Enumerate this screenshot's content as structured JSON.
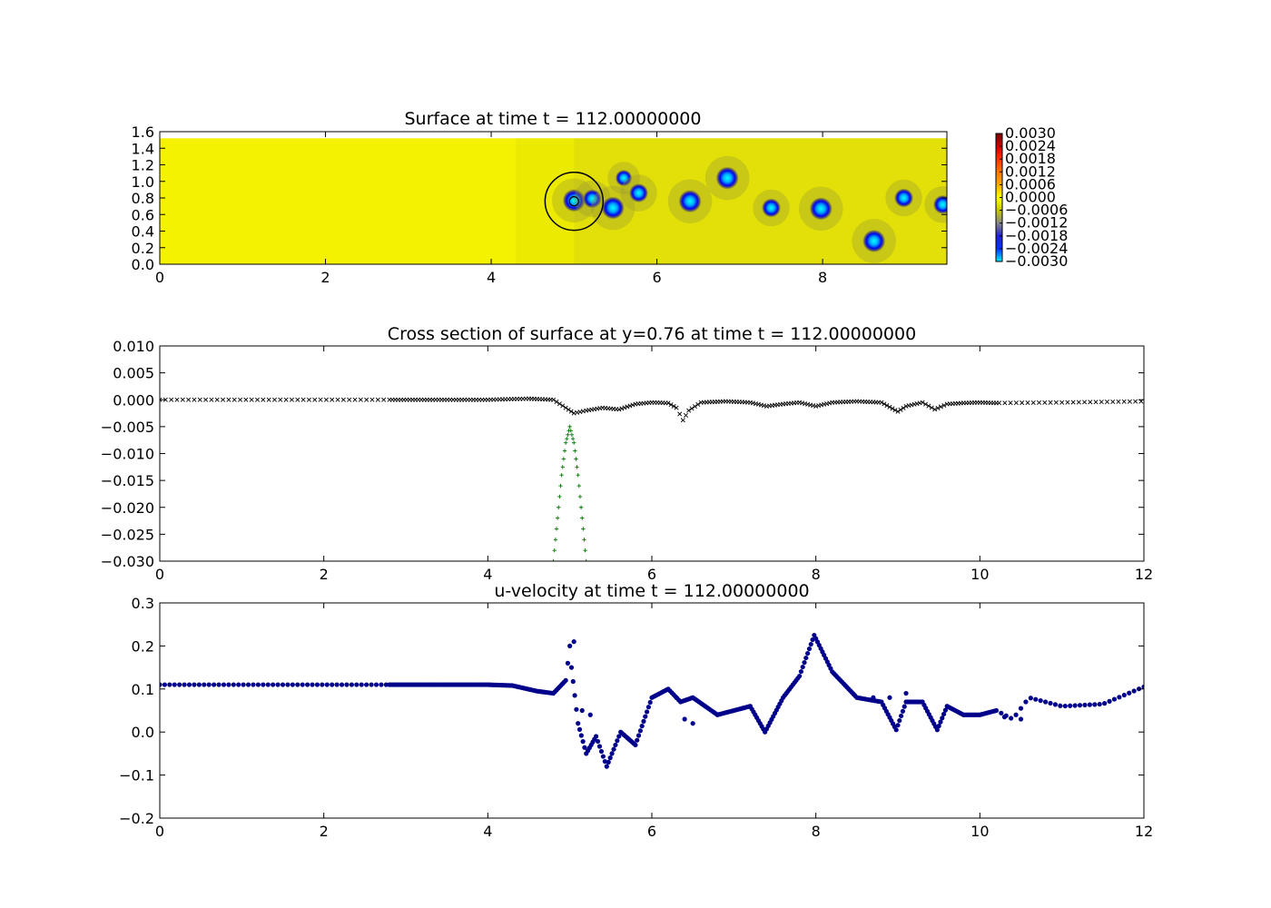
{
  "chart_data": [
    {
      "type": "heatmap",
      "title": "Surface at time t =   112.00000000",
      "xlim": [
        0,
        9.5
      ],
      "ylim": [
        0,
        1.6
      ],
      "data_y_extent": [
        0,
        1.52
      ],
      "x_ticks": [
        "0",
        "2",
        "4",
        "6",
        "8"
      ],
      "y_ticks": [
        "0.0",
        "0.2",
        "0.4",
        "0.6",
        "0.8",
        "1.0",
        "1.2",
        "1.4",
        "1.6"
      ],
      "background_value": 0.0,
      "blobs": [
        {
          "x": 5.0,
          "y": 0.77,
          "value": -0.003
        },
        {
          "x": 5.22,
          "y": 0.79,
          "value": -0.0025
        },
        {
          "x": 5.47,
          "y": 0.68,
          "value": -0.003
        },
        {
          "x": 5.6,
          "y": 1.04,
          "value": -0.0022
        },
        {
          "x": 5.78,
          "y": 0.86,
          "value": -0.0025
        },
        {
          "x": 6.4,
          "y": 0.76,
          "value": -0.003
        },
        {
          "x": 6.85,
          "y": 1.04,
          "value": -0.003
        },
        {
          "x": 7.38,
          "y": 0.68,
          "value": -0.0025
        },
        {
          "x": 7.98,
          "y": 0.67,
          "value": -0.003
        },
        {
          "x": 8.62,
          "y": 0.28,
          "value": -0.003
        },
        {
          "x": 8.98,
          "y": 0.8,
          "value": -0.0025
        },
        {
          "x": 9.45,
          "y": 0.72,
          "value": -0.0025
        }
      ],
      "annotation_circle": {
        "x": 5.0,
        "y": 0.76,
        "r": 0.35
      },
      "colorbar": {
        "ticks": [
          "0.0030",
          "0.0024",
          "0.0018",
          "0.0012",
          "0.0006",
          "0.0000",
          "−0.0006",
          "−0.0012",
          "−0.0018",
          "−0.0024",
          "−0.0030"
        ],
        "colors": [
          "#780000",
          "#cc0000",
          "#ff3300",
          "#ff7700",
          "#ffaa00",
          "#ffff00",
          "#c8c800",
          "#888888",
          "#2222cc",
          "#0033ff",
          "#00eeff"
        ]
      }
    },
    {
      "type": "scatter",
      "title": "Cross section of surface at y=0.76 at time t =   112.00000000",
      "xlim": [
        0,
        12
      ],
      "ylim": [
        -0.03,
        0.01
      ],
      "x_ticks": [
        "0",
        "2",
        "4",
        "6",
        "8",
        "10",
        "12"
      ],
      "y_ticks": [
        "0.010",
        "0.005",
        "0.000",
        "−0.005",
        "−0.010",
        "−0.015",
        "−0.020",
        "−0.025",
        "−0.030"
      ],
      "series": [
        {
          "marker": "x",
          "color": "#000000",
          "x": [
            0,
            2.8,
            4.0,
            4.5,
            4.8,
            4.95,
            5.05,
            5.2,
            5.4,
            5.6,
            5.8,
            6.0,
            6.2,
            6.3,
            6.38,
            6.45,
            6.6,
            6.9,
            7.2,
            7.4,
            7.6,
            7.8,
            8.0,
            8.2,
            8.5,
            8.8,
            9.0,
            9.1,
            9.3,
            9.45,
            9.6,
            9.8,
            10.0,
            10.2,
            11.0,
            12.0
          ],
          "y": [
            0.0,
            0.0,
            0.0,
            0.0002,
            0.0,
            -0.0015,
            -0.0025,
            -0.002,
            -0.0015,
            -0.0018,
            -0.0008,
            -0.0005,
            -0.0006,
            -0.0015,
            -0.0038,
            -0.002,
            -0.0005,
            -0.0003,
            -0.0005,
            -0.0012,
            -0.0008,
            -0.0005,
            -0.0012,
            -0.0005,
            -0.0003,
            -0.0005,
            -0.0022,
            -0.0012,
            -0.0005,
            -0.0018,
            -0.0008,
            -0.0006,
            -0.0005,
            -0.0006,
            -0.0005,
            -0.0003
          ]
        },
        {
          "marker": "+",
          "color": "#007700",
          "x": [
            4.8,
            4.85,
            4.9,
            4.95,
            5.0,
            5.05,
            5.1,
            5.15,
            5.2
          ],
          "y": [
            -0.03,
            -0.022,
            -0.014,
            -0.008,
            -0.005,
            -0.008,
            -0.014,
            -0.022,
            -0.03
          ]
        }
      ]
    },
    {
      "type": "scatter",
      "title": "u-velocity at time t =   112.00000000",
      "xlim": [
        0,
        12
      ],
      "ylim": [
        -0.2,
        0.3
      ],
      "x_ticks": [
        "0",
        "2",
        "4",
        "6",
        "8",
        "10",
        "12"
      ],
      "y_ticks": [
        "0.3",
        "0.2",
        "0.1",
        "0.0",
        "−0.1",
        "−0.2"
      ],
      "series": [
        {
          "marker": "o",
          "color": "#00008b",
          "x": [
            0,
            2.8,
            4.0,
            4.3,
            4.6,
            4.8,
            4.95,
            5.0,
            5.02,
            5.1,
            5.2,
            5.32,
            5.45,
            5.62,
            5.8,
            6.0,
            6.2,
            6.35,
            6.5,
            6.65,
            6.8,
            7.0,
            7.2,
            7.38,
            7.6,
            7.8,
            7.98,
            8.2,
            8.5,
            8.8,
            8.98,
            9.1,
            9.3,
            9.48,
            9.6,
            9.8,
            10.0,
            10.2,
            10.4,
            10.6,
            11.0,
            11.5,
            12.0
          ],
          "y": [
            0.11,
            0.11,
            0.11,
            0.108,
            0.095,
            0.09,
            0.12,
            0.2,
            0.15,
            0.02,
            -0.05,
            -0.01,
            -0.08,
            0.0,
            -0.03,
            0.08,
            0.1,
            0.07,
            0.08,
            0.06,
            0.04,
            0.05,
            0.06,
            0.0,
            0.08,
            0.13,
            0.225,
            0.14,
            0.08,
            0.07,
            0.005,
            0.07,
            0.07,
            0.005,
            0.06,
            0.04,
            0.04,
            0.05,
            0.03,
            0.08,
            0.06,
            0.065,
            0.105
          ]
        },
        {
          "marker": "o",
          "color": "#00008b",
          "x": [
            5.05,
            5.15,
            5.25,
            6.3,
            6.4,
            6.5,
            8.7,
            8.9,
            9.1,
            10.3,
            10.5
          ],
          "y": [
            0.21,
            0.05,
            0.04,
            0.08,
            0.03,
            0.02,
            0.08,
            0.08,
            0.09,
            0.035,
            0.03
          ]
        }
      ]
    }
  ]
}
